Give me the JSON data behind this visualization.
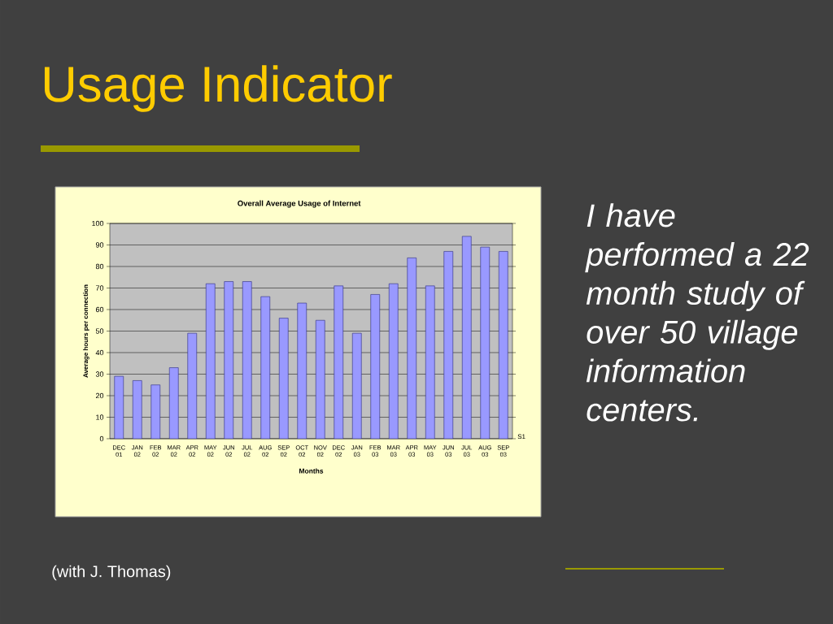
{
  "chart_data": {
    "type": "bar",
    "title": "Usage Indicator",
    "subtitle": "Overall Average Usage of Internet",
    "xlabel": "Months",
    "ylabel": "Average hours per connection",
    "categories": [
      "DEC 01",
      "JAN 02",
      "FEB 02",
      "MAR 02",
      "APR 02",
      "MAY 02",
      "JUN 02",
      "JUL 02",
      "AUG 02",
      "SEP 02",
      "OCT 02",
      "NOV 02",
      "DEC 02",
      "JAN 03",
      "FEB 03",
      "MAR 03",
      "APR 03",
      "MAY 03",
      "JUN 03",
      "JUL 03",
      "AUG 03",
      "SEP 03"
    ],
    "series": [
      {
        "name": "S1",
        "color": "#9999ff",
        "values": [
          29,
          27,
          25,
          33,
          49,
          72,
          73,
          73,
          66,
          56,
          63,
          55,
          71,
          49,
          67,
          72,
          84,
          71,
          87,
          94,
          89,
          87
        ]
      }
    ],
    "ylim": [
      0,
      100
    ],
    "yticks": [
      0,
      10,
      20,
      30,
      40,
      50,
      60,
      70,
      80,
      90,
      100
    ],
    "grid": "y",
    "annotations": [
      "I have performed a 22 month study of over 50 village information centers.",
      "(with J. Thomas)"
    ]
  }
}
